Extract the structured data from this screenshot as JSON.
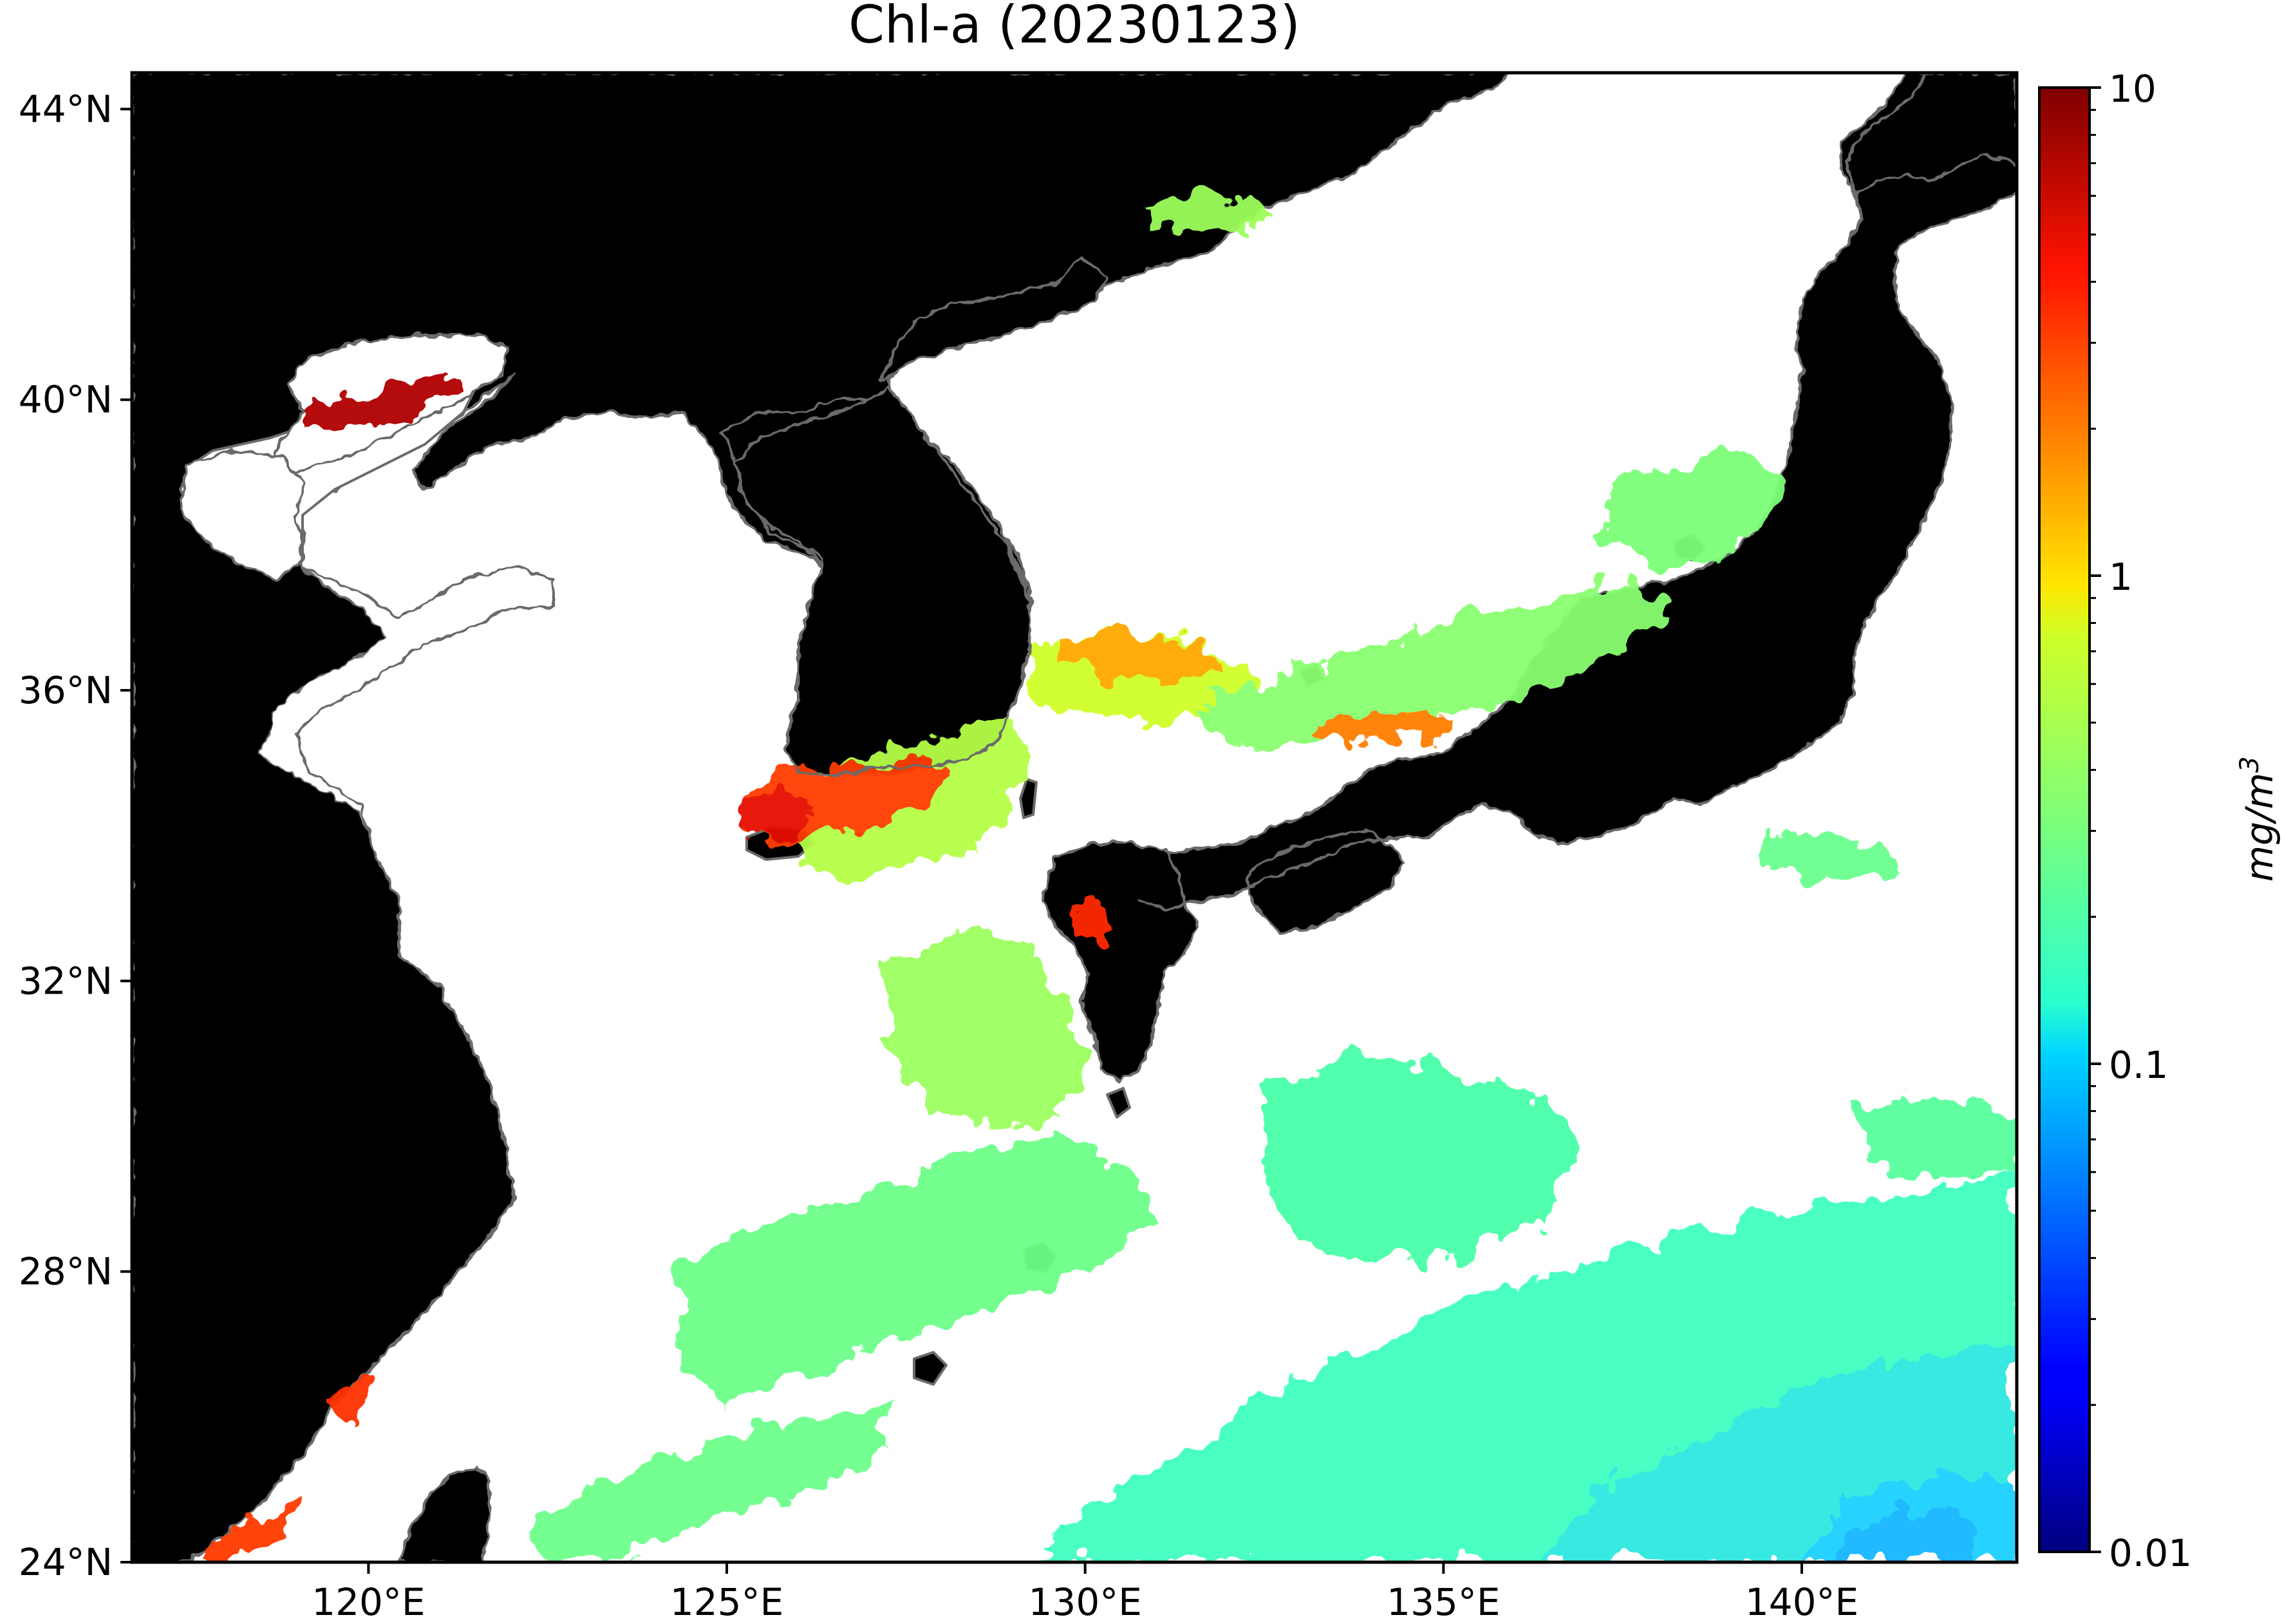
{
  "map": {
    "title": "Chl-a (20230123)",
    "projection": "equirectangular",
    "extent": {
      "lon": [
        116.7,
        143.0
      ],
      "lat": [
        24.0,
        44.5
      ]
    },
    "land_color": "#f0f4c8",
    "coast_color": "#6b6b6b",
    "ocean_nodata_color": "#ffffff",
    "lon_ticks": [
      {
        "value": 120,
        "label": "120°E"
      },
      {
        "value": 125,
        "label": "125°E"
      },
      {
        "value": 130,
        "label": "130°E"
      },
      {
        "value": 135,
        "label": "135°E"
      },
      {
        "value": 140,
        "label": "140°E"
      }
    ],
    "lat_ticks": [
      {
        "value": 24,
        "label": "24°N"
      },
      {
        "value": 28,
        "label": "28°N"
      },
      {
        "value": 32,
        "label": "32°N"
      },
      {
        "value": 36,
        "label": "36°N"
      },
      {
        "value": 40,
        "label": "40°N"
      },
      {
        "value": 44,
        "label": "44°N"
      }
    ]
  },
  "colorbar": {
    "label": "mg/m",
    "label_superscript": "3",
    "scale": "log",
    "colormap": "jet",
    "range": [
      0.01,
      10
    ],
    "ticks": [
      {
        "value": 10,
        "label": "10"
      },
      {
        "value": 1,
        "label": "1"
      },
      {
        "value": 0.1,
        "label": "0.1"
      },
      {
        "value": 0.01,
        "label": "0.01"
      }
    ]
  }
}
